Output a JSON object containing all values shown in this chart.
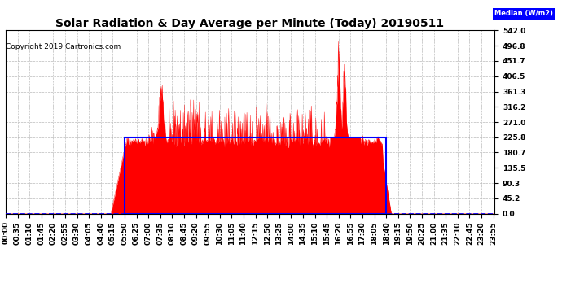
{
  "title": "Solar Radiation & Day Average per Minute (Today) 20190511",
  "copyright": "Copyright 2019 Cartronics.com",
  "ylim": [
    0.0,
    542.0
  ],
  "yticks": [
    0.0,
    45.2,
    90.3,
    135.5,
    180.7,
    225.8,
    271.0,
    316.2,
    361.3,
    406.5,
    451.7,
    496.8,
    542.0
  ],
  "median_color": "#0000FF",
  "radiation_color": "#FF0000",
  "bg_color": "#FFFFFF",
  "grid_color": "#AAAAAA",
  "median_value": 225.8,
  "total_minutes": 1440,
  "sunrise_minute": 350,
  "sunset_minute": 1120,
  "title_fontsize": 10,
  "tick_fontsize": 6.5,
  "copyright_fontsize": 6.5,
  "tick_interval": 35
}
